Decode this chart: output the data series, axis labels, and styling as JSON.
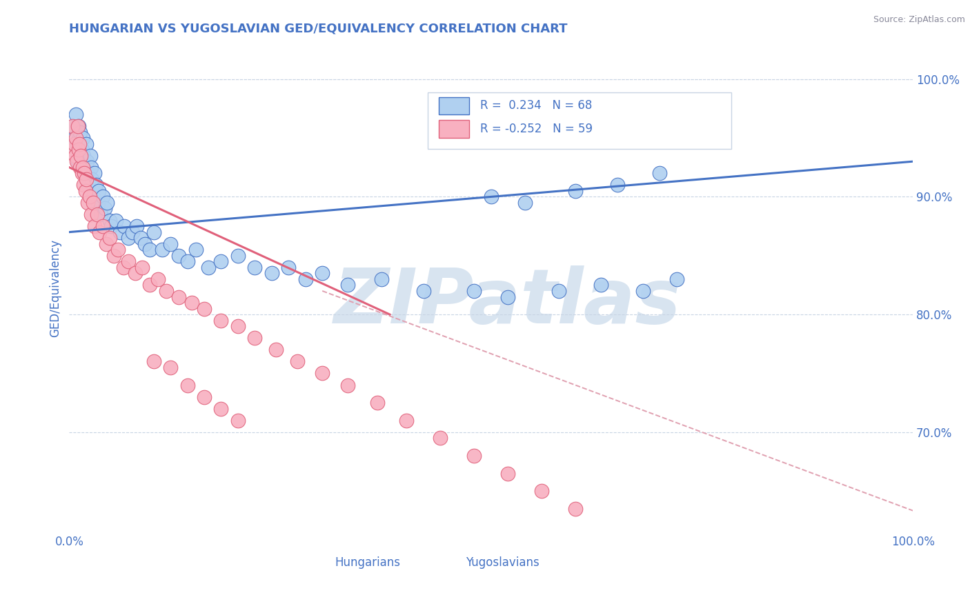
{
  "title": "HUNGARIAN VS YUGOSLAVIAN GED/EQUIVALENCY CORRELATION CHART",
  "source": "Source: ZipAtlas.com",
  "ylabel": "GED/Equivalency",
  "x_range": [
    0.0,
    1.0
  ],
  "y_range": [
    0.615,
    1.03
  ],
  "hungarian_R": 0.234,
  "hungarian_N": 68,
  "yugoslavian_R": -0.252,
  "yugoslavian_N": 59,
  "hungarian_color": "#b0d0f0",
  "yugoslavian_color": "#f8b0c0",
  "hungarian_line_color": "#4472c4",
  "yugoslavian_line_color": "#e0607a",
  "dashed_line_color": "#e0a0b0",
  "watermark_color": "#d8e4f0",
  "title_color": "#4472c4",
  "axis_label_color": "#4472c4",
  "tick_label_color": "#4472c4",
  "background_color": "#ffffff",
  "hungarian_scatter_x": [
    0.005,
    0.006,
    0.007,
    0.008,
    0.009,
    0.01,
    0.011,
    0.012,
    0.013,
    0.015,
    0.016,
    0.017,
    0.018,
    0.02,
    0.021,
    0.022,
    0.023,
    0.025,
    0.026,
    0.027,
    0.028,
    0.03,
    0.032,
    0.034,
    0.035,
    0.037,
    0.04,
    0.042,
    0.045,
    0.048,
    0.05,
    0.055,
    0.06,
    0.065,
    0.07,
    0.075,
    0.08,
    0.085,
    0.09,
    0.095,
    0.1,
    0.11,
    0.12,
    0.13,
    0.14,
    0.15,
    0.165,
    0.18,
    0.2,
    0.22,
    0.24,
    0.26,
    0.28,
    0.3,
    0.33,
    0.37,
    0.42,
    0.48,
    0.52,
    0.58,
    0.63,
    0.68,
    0.72,
    0.5,
    0.54,
    0.6,
    0.65,
    0.7
  ],
  "hungarian_scatter_y": [
    0.96,
    0.95,
    0.945,
    0.97,
    0.94,
    0.93,
    0.96,
    0.95,
    0.955,
    0.94,
    0.95,
    0.935,
    0.92,
    0.945,
    0.93,
    0.92,
    0.91,
    0.935,
    0.925,
    0.915,
    0.9,
    0.92,
    0.91,
    0.895,
    0.905,
    0.885,
    0.9,
    0.89,
    0.895,
    0.88,
    0.875,
    0.88,
    0.87,
    0.875,
    0.865,
    0.87,
    0.875,
    0.865,
    0.86,
    0.855,
    0.87,
    0.855,
    0.86,
    0.85,
    0.845,
    0.855,
    0.84,
    0.845,
    0.85,
    0.84,
    0.835,
    0.84,
    0.83,
    0.835,
    0.825,
    0.83,
    0.82,
    0.82,
    0.815,
    0.82,
    0.825,
    0.82,
    0.83,
    0.9,
    0.895,
    0.905,
    0.91,
    0.92
  ],
  "yugoslavian_scatter_x": [
    0.004,
    0.005,
    0.006,
    0.007,
    0.008,
    0.009,
    0.01,
    0.011,
    0.012,
    0.013,
    0.014,
    0.015,
    0.016,
    0.017,
    0.018,
    0.019,
    0.02,
    0.022,
    0.024,
    0.026,
    0.028,
    0.03,
    0.033,
    0.036,
    0.04,
    0.044,
    0.048,
    0.053,
    0.058,
    0.064,
    0.07,
    0.078,
    0.086,
    0.095,
    0.105,
    0.115,
    0.13,
    0.145,
    0.16,
    0.18,
    0.2,
    0.22,
    0.245,
    0.27,
    0.3,
    0.33,
    0.365,
    0.4,
    0.44,
    0.48,
    0.52,
    0.56,
    0.6,
    0.2,
    0.18,
    0.16,
    0.14,
    0.12,
    0.1
  ],
  "yugoslavian_scatter_y": [
    0.96,
    0.94,
    0.945,
    0.935,
    0.95,
    0.93,
    0.96,
    0.94,
    0.945,
    0.925,
    0.935,
    0.92,
    0.925,
    0.91,
    0.92,
    0.905,
    0.915,
    0.895,
    0.9,
    0.885,
    0.895,
    0.875,
    0.885,
    0.87,
    0.875,
    0.86,
    0.865,
    0.85,
    0.855,
    0.84,
    0.845,
    0.835,
    0.84,
    0.825,
    0.83,
    0.82,
    0.815,
    0.81,
    0.805,
    0.795,
    0.79,
    0.78,
    0.77,
    0.76,
    0.75,
    0.74,
    0.725,
    0.71,
    0.695,
    0.68,
    0.665,
    0.65,
    0.635,
    0.71,
    0.72,
    0.73,
    0.74,
    0.755,
    0.76
  ],
  "hungarian_trend": [
    0.0,
    1.0,
    0.87,
    0.93
  ],
  "yugoslavian_trend": [
    0.0,
    0.38,
    0.925,
    0.8
  ],
  "dashed_trend": [
    0.3,
    1.05,
    0.82,
    0.62
  ]
}
